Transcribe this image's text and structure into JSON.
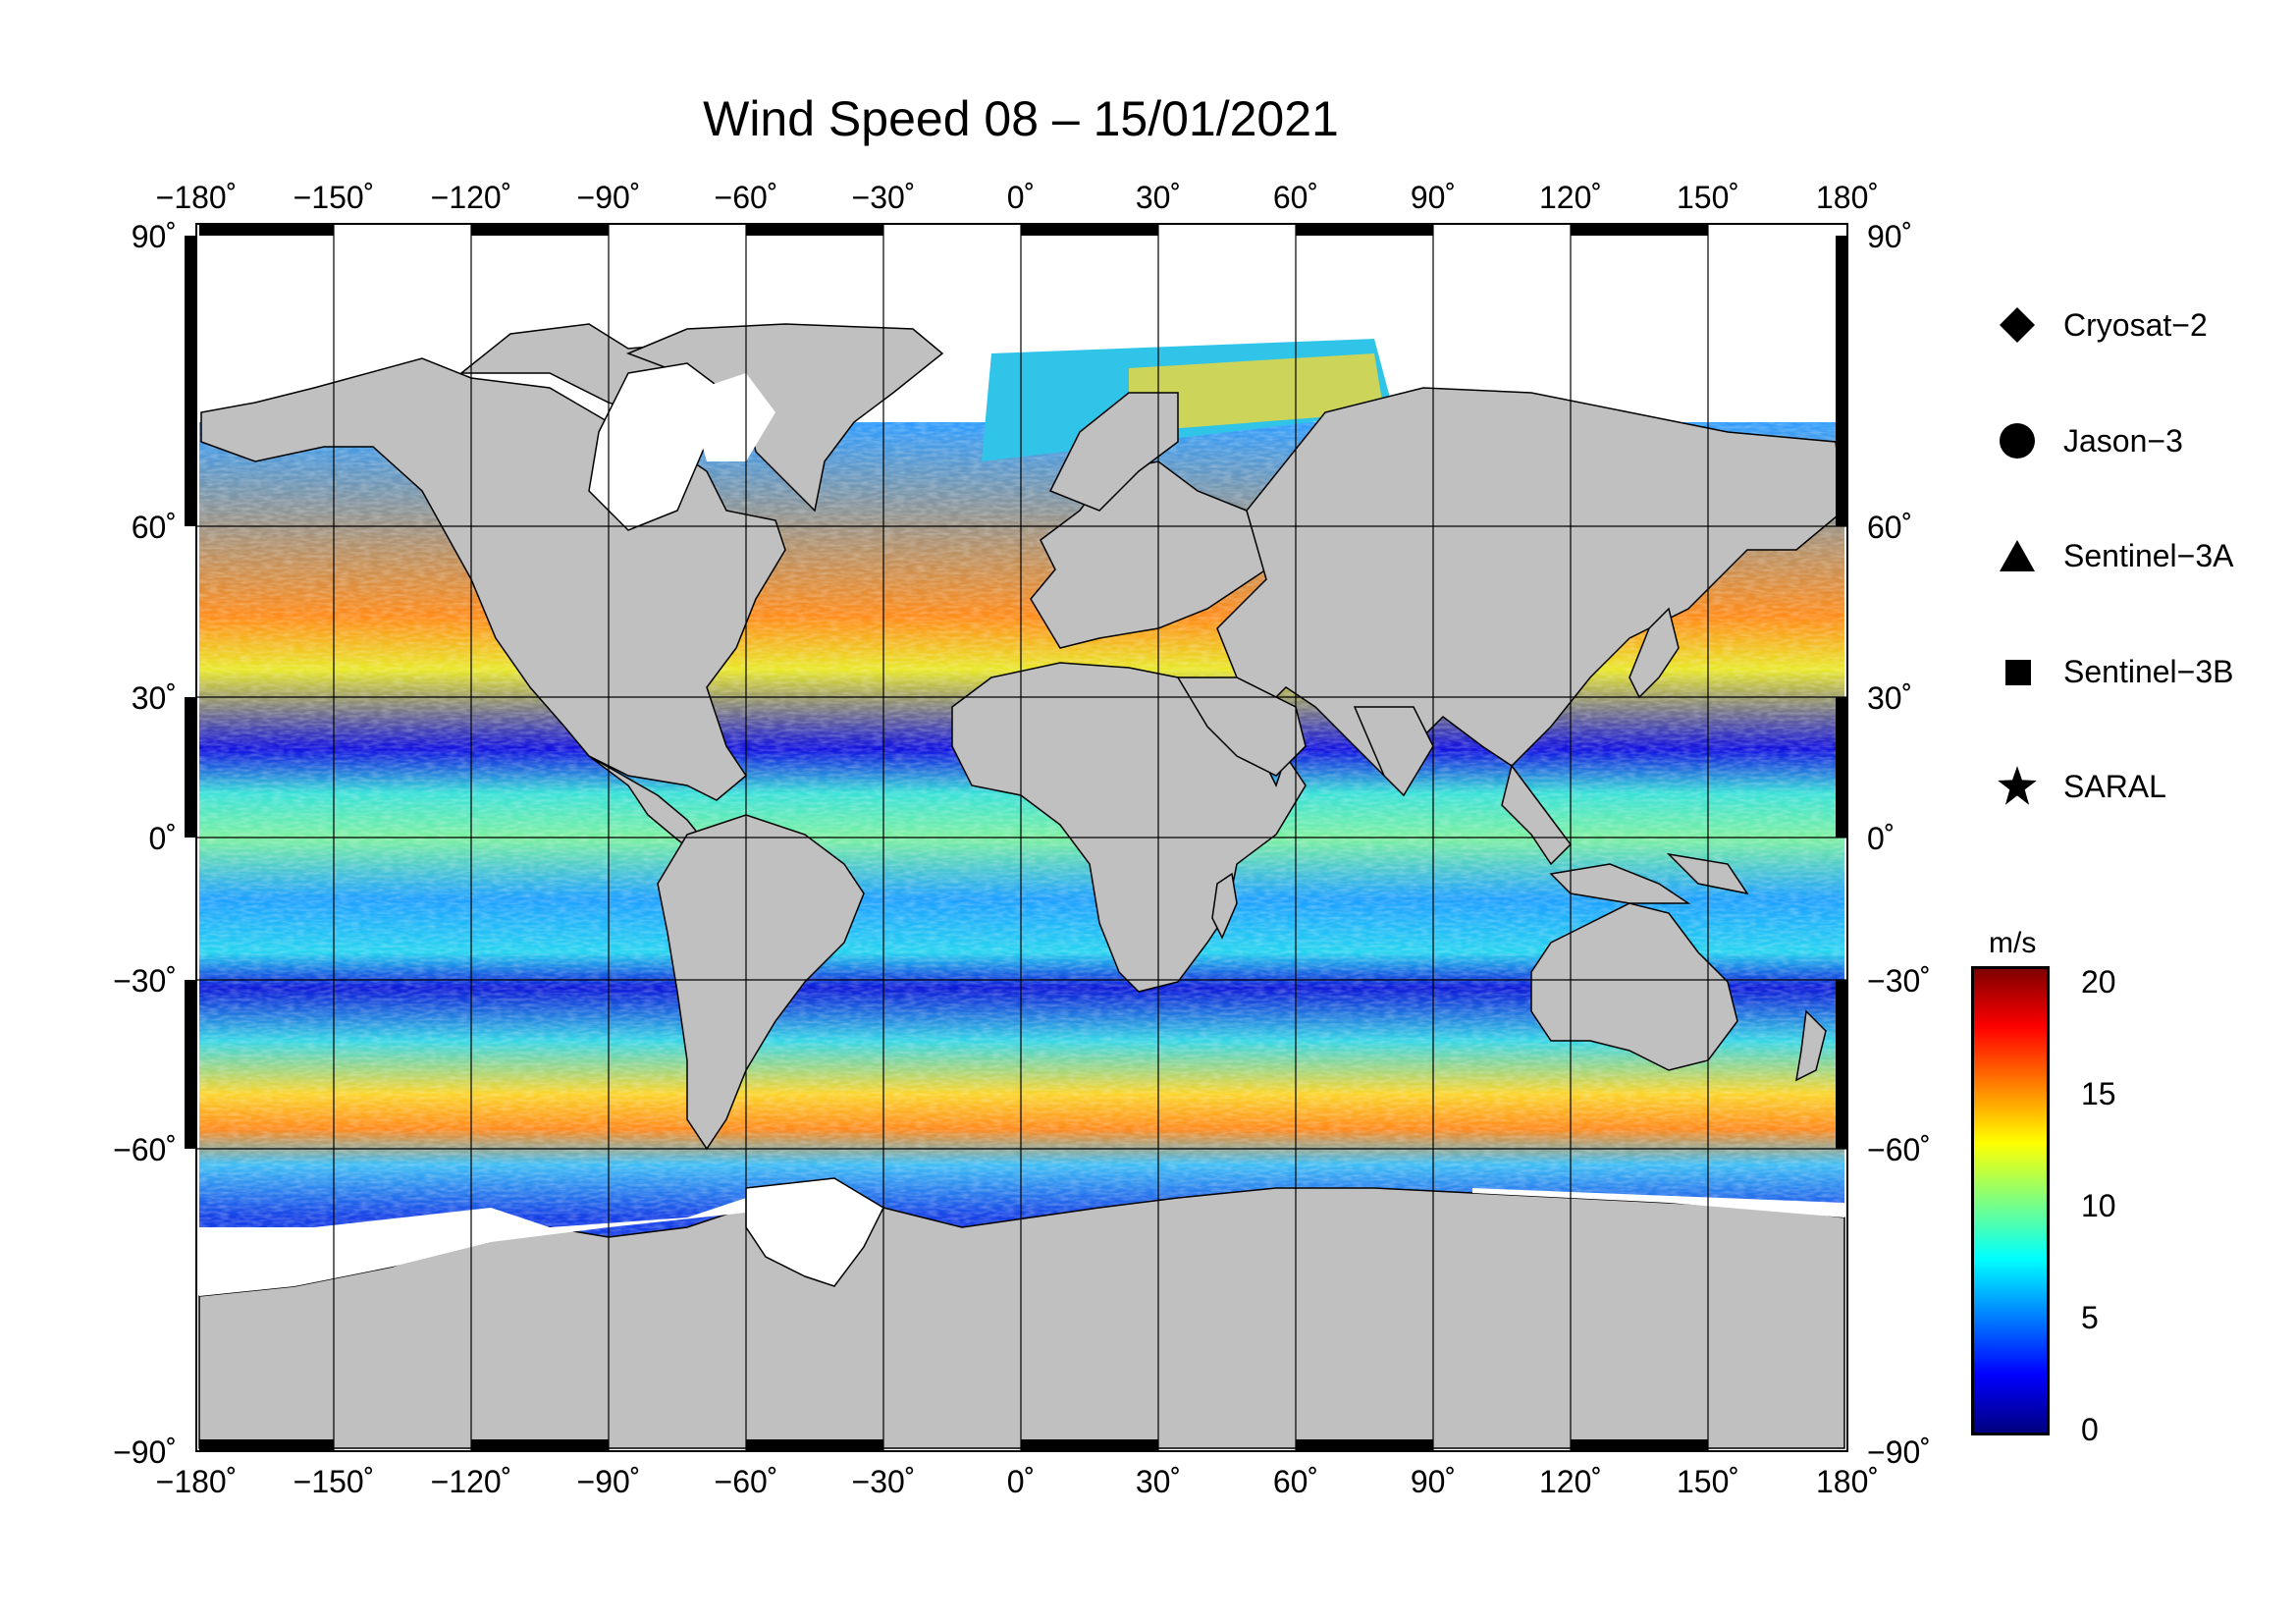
{
  "title": "Wind Speed 08 – 15/01/2021",
  "map": {
    "lon_ticks": [
      "−180˚",
      "−150˚",
      "−120˚",
      "−90˚",
      "−60˚",
      "−30˚",
      "0˚",
      "30˚",
      "60˚",
      "90˚",
      "120˚",
      "150˚",
      "180˚"
    ],
    "lat_ticks": [
      "90˚",
      "60˚",
      "30˚",
      "0˚",
      "−30˚",
      "−60˚",
      "−90˚"
    ],
    "lon_range": [
      -180,
      180
    ],
    "lat_range": [
      -90,
      90
    ],
    "land_color": "#c0c0c0",
    "ice_color": "#ffffff",
    "grid": true
  },
  "legend": {
    "items": [
      {
        "symbol": "diamond",
        "label": "Cryosat−2"
      },
      {
        "symbol": "circle",
        "label": "Jason−3"
      },
      {
        "symbol": "triangle",
        "label": "Sentinel−3A"
      },
      {
        "symbol": "square",
        "label": "Sentinel−3B"
      },
      {
        "symbol": "star",
        "label": "SARAL"
      }
    ]
  },
  "colorbar": {
    "unit": "m/s",
    "labels": [
      "20",
      "15",
      "10",
      "5",
      "0"
    ],
    "range": [
      0,
      21
    ],
    "colors": [
      "#00007f",
      "#0000ff",
      "#007fff",
      "#00ffff",
      "#7fff7f",
      "#ffff00",
      "#ff7f00",
      "#ff0000",
      "#7f0000"
    ]
  }
}
